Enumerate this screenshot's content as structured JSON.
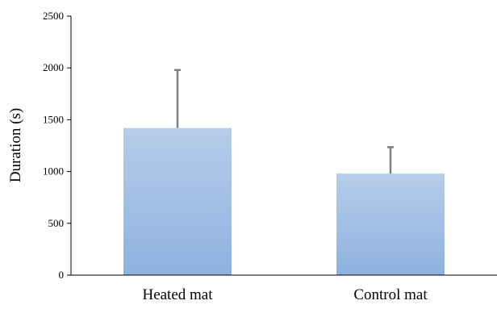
{
  "chart_data": {
    "type": "bar",
    "title": "",
    "xlabel": "",
    "ylabel": "Duration (s)",
    "categories": [
      "Heated mat",
      "Control mat"
    ],
    "values": [
      1420,
      980
    ],
    "error_bars": [
      560,
      255
    ],
    "ylim": [
      0,
      2500
    ],
    "yticks": [
      0,
      500,
      1000,
      1500,
      2000,
      2500
    ],
    "grid": false,
    "legend": "none",
    "colors": {
      "bar_top": "#B6CDE9",
      "bar_bottom": "#8FB1E0",
      "error_bar": "#7F7F7F",
      "axis": "#000000"
    }
  }
}
